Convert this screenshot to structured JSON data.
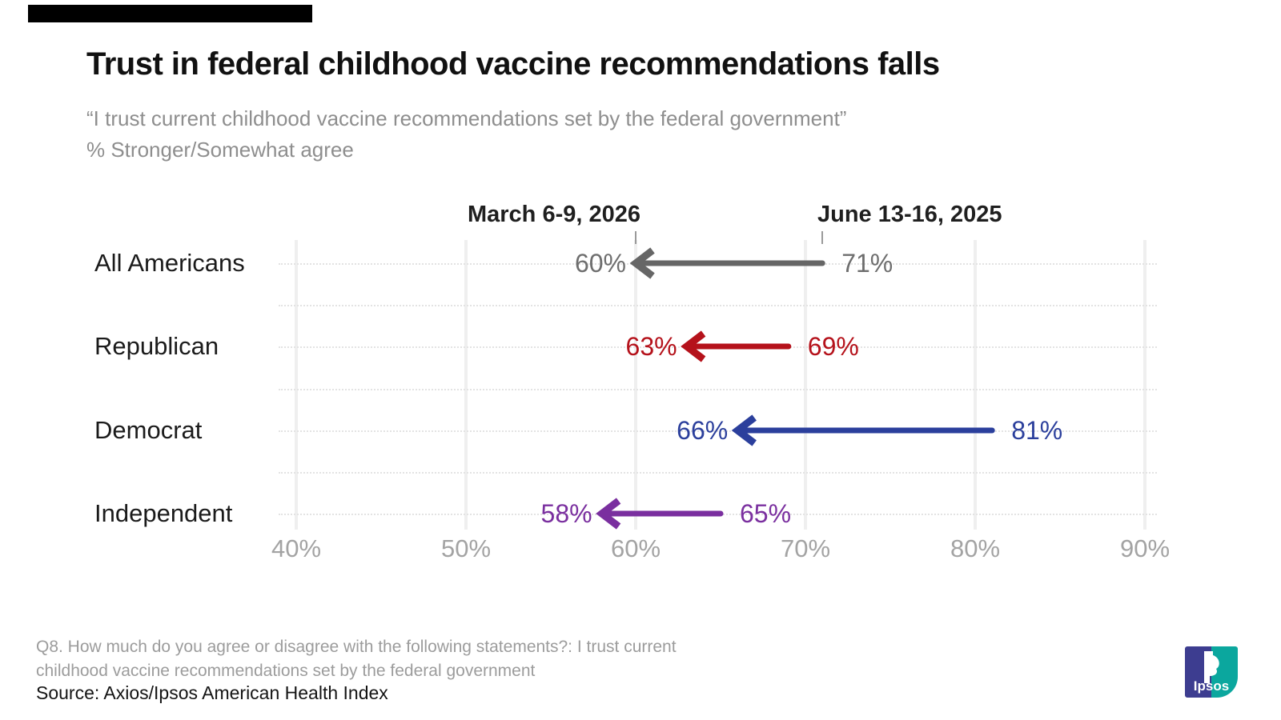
{
  "header": {
    "title": "Trust in federal childhood vaccine recommendations falls",
    "subtitle_line1": "“I trust current childhood vaccine recommendations set by the federal government”",
    "subtitle_line2": "% Stronger/Somewhat agree"
  },
  "chart_data": {
    "type": "arrow-dumbbell",
    "title": "Trust in federal childhood vaccine recommendations falls",
    "question": "I trust current childhood vaccine recommendations set by the federal government",
    "metric": "% Stronger/Somewhat agree",
    "column_headers": [
      {
        "label": "March 6-9, 2026",
        "anchor_value": 60
      },
      {
        "label": "June 13-16, 2025",
        "anchor_value": 71
      }
    ],
    "categories": [
      "All Americans",
      "Republican",
      "Democrat",
      "Independent"
    ],
    "series": [
      {
        "name": "March 6-9, 2026",
        "values": [
          60,
          63,
          66,
          58
        ]
      },
      {
        "name": "June 13-16, 2025",
        "values": [
          71,
          69,
          81,
          65
        ]
      }
    ],
    "rows": [
      {
        "label": "All Americans",
        "new_value": 60,
        "old_value": 71,
        "new_label": "60%",
        "old_label": "71%",
        "color": "#666666",
        "label_color": "#6e6e6e"
      },
      {
        "label": "Republican",
        "new_value": 63,
        "old_value": 69,
        "new_label": "63%",
        "old_label": "69%",
        "color": "#b5121b",
        "label_color": "#b5121b"
      },
      {
        "label": "Democrat",
        "new_value": 66,
        "old_value": 81,
        "new_label": "66%",
        "old_label": "81%",
        "color": "#2b3f9c",
        "label_color": "#2b3f9c"
      },
      {
        "label": "Independent",
        "new_value": 58,
        "old_value": 65,
        "new_label": "58%",
        "old_label": "65%",
        "color": "#7a2f9f",
        "label_color": "#7a2f9f"
      }
    ],
    "x_axis": {
      "ticks": [
        40,
        50,
        60,
        70,
        80,
        90
      ],
      "tick_labels": [
        "40%",
        "50%",
        "60%",
        "70%",
        "80%",
        "90%"
      ],
      "range": [
        40,
        90
      ],
      "unit": "%"
    },
    "grid": "vertical major gridlines, dotted horizontal row guides",
    "legend_position": "column headers above first row",
    "arrow_direction": "old value to new value (leftward decline)"
  },
  "footer": {
    "note_lines": [
      "Q8. How much do you agree or disagree with the following statements?: I trust current",
      "childhood vaccine recommendations set by the federal government"
    ],
    "source": "Source: Axios/Ipsos American Health Index"
  },
  "logo": {
    "text": "Ipsos",
    "left_color": "#3d3d90",
    "right_color": "#0ba79e"
  }
}
